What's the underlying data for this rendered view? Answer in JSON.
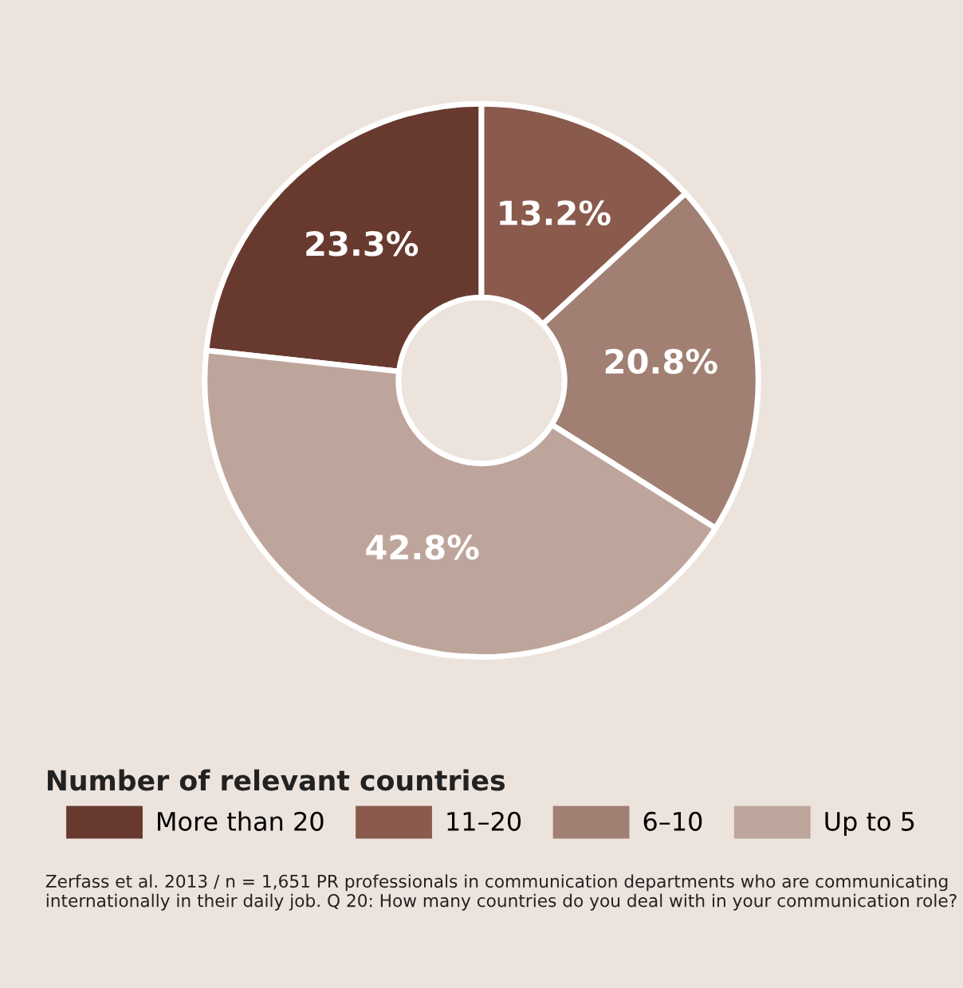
{
  "chart_data": {
    "type": "donut",
    "categories": [
      "More than 20",
      "11–20",
      "6–10",
      "Up to 5"
    ],
    "values": [
      23.3,
      13.2,
      20.8,
      42.8
    ],
    "value_labels": [
      "23.3%",
      "13.2%",
      "20.8%",
      "42.8%"
    ],
    "colors": [
      "#683a2f",
      "#8a5a4d",
      "#a17f73",
      "#bea59b"
    ],
    "legend_title": "Number of relevant countries",
    "legend": "bottom",
    "annotations": [
      "Zerfass et al. 2013 / n = 1,651 PR professionals in communication departments who are communicating internationally in their daily job. Q 20: How many countries do you deal with in your communication role?"
    ]
  }
}
